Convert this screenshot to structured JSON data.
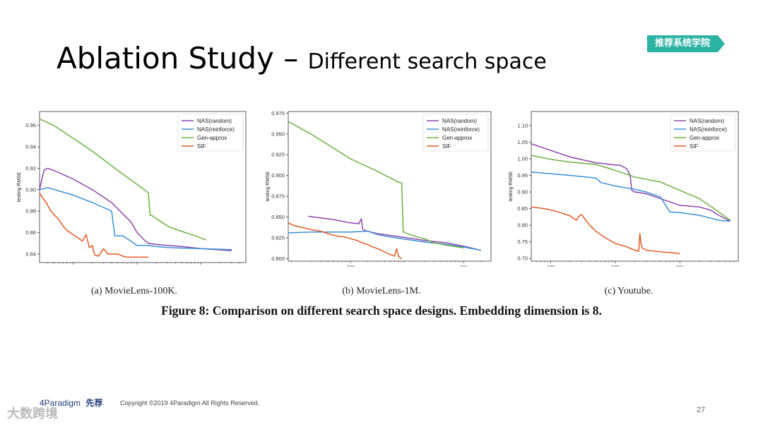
{
  "title": {
    "main": "Ablation Study – ",
    "sub": "Different search space"
  },
  "badge": {
    "label": "推荐系统学院",
    "color": "#2bb3a3"
  },
  "chart_data": [
    {
      "type": "line",
      "caption": "(a)  MovieLens-100K.",
      "xlabel": "clock time (sec)",
      "ylabel": "testing RMSE",
      "xscale": "log",
      "xlim": [
        3,
        5000
      ],
      "ylim": [
        0.832,
        0.973
      ],
      "xticks": [
        {
          "v": 10,
          "label": "10¹"
        },
        {
          "v": 100,
          "label": "10²"
        },
        {
          "v": 1000,
          "label": "10³"
        }
      ],
      "yticks": [
        0.84,
        0.86,
        0.88,
        0.9,
        0.92,
        0.94,
        0.96
      ],
      "ytick_labels": [
        "0.84",
        "0.86",
        "0.88",
        "0.90",
        "0.92",
        "0.94",
        "0.96"
      ],
      "legend": [
        "NAS(random)",
        "NAS(reinforce)",
        "Gen-approx",
        "SIF"
      ],
      "series": [
        {
          "name": "NAS(random)",
          "color": "#8e44ad",
          "x": [
            3,
            3.5,
            4,
            5,
            10,
            20,
            40,
            80,
            100,
            130,
            150,
            200,
            300,
            500,
            1000,
            3000
          ],
          "y": [
            0.9,
            0.918,
            0.92,
            0.918,
            0.91,
            0.9,
            0.888,
            0.87,
            0.86,
            0.853,
            0.85,
            0.849,
            0.848,
            0.847,
            0.845,
            0.843
          ]
        },
        {
          "name": "NAS(reinforce)",
          "color": "#3a8fd6",
          "x": [
            3,
            4,
            10,
            20,
            40,
            42,
            45,
            60,
            80,
            100,
            120,
            150,
            200,
            300,
            1000,
            3000
          ],
          "y": [
            0.9,
            0.902,
            0.895,
            0.888,
            0.88,
            0.87,
            0.857,
            0.857,
            0.852,
            0.848,
            0.848,
            0.848,
            0.847,
            0.846,
            0.845,
            0.844
          ]
        },
        {
          "name": "Gen-approx",
          "color": "#6ab040",
          "x": [
            3,
            5,
            10,
            20,
            50,
            100,
            150,
            160,
            170,
            200,
            300,
            500,
            800,
            1200
          ],
          "y": [
            0.966,
            0.96,
            0.948,
            0.936,
            0.918,
            0.905,
            0.897,
            0.876,
            0.876,
            0.873,
            0.866,
            0.861,
            0.857,
            0.853
          ]
        },
        {
          "name": "SIF",
          "color": "#e05a25",
          "x": [
            3,
            3.3,
            3.8,
            4.5,
            5,
            6,
            7,
            8,
            9,
            10,
            12,
            14,
            16,
            18,
            20,
            21,
            22,
            25,
            30,
            35,
            40,
            45,
            50,
            60,
            70,
            80,
            100,
            150
          ],
          "y": [
            0.897,
            0.893,
            0.888,
            0.88,
            0.877,
            0.872,
            0.866,
            0.862,
            0.86,
            0.858,
            0.855,
            0.852,
            0.858,
            0.846,
            0.848,
            0.842,
            0.839,
            0.838,
            0.845,
            0.84,
            0.84,
            0.84,
            0.84,
            0.838,
            0.837,
            0.837,
            0.837,
            0.837
          ]
        }
      ]
    },
    {
      "type": "line",
      "caption": "(b)  MovieLens-1M.",
      "xlabel": "clock time (sec)",
      "ylabel": "testing RMSE",
      "xscale": "log",
      "xlim": [
        8,
        30000
      ],
      "ylim": [
        0.797,
        0.977
      ],
      "xticks": [
        {
          "v": 100,
          "label": "10²"
        },
        {
          "v": 10000,
          "label": "10⁴"
        }
      ],
      "yticks": [
        0.8,
        0.825,
        0.85,
        0.875,
        0.9,
        0.925,
        0.95,
        0.975
      ],
      "ytick_labels": [
        "0.800",
        "0.825",
        "0.850",
        "0.875",
        "0.900",
        "0.925",
        "0.950",
        "0.975"
      ],
      "legend": [
        "NAS(random)",
        "NAS(reinforce)",
        "Gen-approx",
        "SIF"
      ],
      "series": [
        {
          "name": "NAS(random)",
          "color": "#8e44ad",
          "x": [
            18,
            50,
            100,
            140,
            155,
            165,
            200,
            300,
            500,
            1000,
            2000,
            5000,
            10000,
            20000
          ],
          "y": [
            0.851,
            0.847,
            0.843,
            0.842,
            0.848,
            0.835,
            0.833,
            0.83,
            0.828,
            0.825,
            0.822,
            0.819,
            0.815,
            0.81
          ]
        },
        {
          "name": "NAS(reinforce)",
          "color": "#3a8fd6",
          "x": [
            8,
            20,
            50,
            100,
            200,
            300,
            500,
            1000,
            2000,
            5000,
            10000,
            20000
          ],
          "y": [
            0.831,
            0.832,
            0.832,
            0.832,
            0.833,
            0.829,
            0.826,
            0.823,
            0.82,
            0.817,
            0.814,
            0.81
          ]
        },
        {
          "name": "Gen-approx",
          "color": "#6ab040",
          "x": [
            8,
            20,
            50,
            100,
            300,
            700,
            800,
            850,
            900,
            1000,
            1500,
            2000,
            3000,
            5000,
            10000
          ],
          "y": [
            0.965,
            0.95,
            0.933,
            0.92,
            0.905,
            0.892,
            0.891,
            0.832,
            0.832,
            0.83,
            0.826,
            0.824,
            0.819,
            0.816,
            0.813
          ]
        },
        {
          "name": "SIF",
          "color": "#e05a25",
          "x": [
            8,
            10,
            15,
            20,
            30,
            40,
            60,
            80,
            100,
            130,
            160,
            200,
            250,
            300,
            400,
            500,
            600,
            650,
            700,
            750,
            800
          ],
          "y": [
            0.843,
            0.84,
            0.837,
            0.835,
            0.833,
            0.83,
            0.827,
            0.826,
            0.824,
            0.822,
            0.819,
            0.817,
            0.814,
            0.812,
            0.808,
            0.805,
            0.803,
            0.812,
            0.803,
            0.801,
            0.8
          ]
        }
      ]
    },
    {
      "type": "line",
      "caption": "(c)  Youtube.",
      "xlabel": "clock time (sec)",
      "ylabel": "testing RMSE",
      "xscale": "log",
      "xlim": [
        50,
        80000
      ],
      "ylim": [
        0.692,
        1.142
      ],
      "xticks": [
        {
          "v": 100,
          "label": "10²"
        },
        {
          "v": 1000,
          "label": "10³"
        },
        {
          "v": 10000,
          "label": "10⁴"
        }
      ],
      "yticks": [
        0.7,
        0.75,
        0.8,
        0.85,
        0.9,
        0.95,
        1.0,
        1.05,
        1.1
      ],
      "ytick_labels": [
        "0.70",
        "0.75",
        "0.80",
        "0.85",
        "0.90",
        "0.95",
        "1.00",
        "1.05",
        "1.10"
      ],
      "legend": [
        "NAS(random)",
        "NAS(reinforce)",
        "Gen-approx",
        "SIF"
      ],
      "series": [
        {
          "name": "NAS(random)",
          "color": "#8e44ad",
          "x": [
            50,
            100,
            200,
            500,
            700,
            900,
            1200,
            1500,
            1700,
            1800,
            2000,
            3000,
            5000,
            7000,
            10000,
            20000,
            30000,
            40000,
            60000
          ],
          "y": [
            1.045,
            1.025,
            1.005,
            0.988,
            0.985,
            0.982,
            0.98,
            0.97,
            0.95,
            0.905,
            0.9,
            0.895,
            0.88,
            0.87,
            0.86,
            0.855,
            0.845,
            0.83,
            0.812
          ]
        },
        {
          "name": "NAS(reinforce)",
          "color": "#3a8fd6",
          "x": [
            50,
            100,
            200,
            500,
            600,
            700,
            1000,
            2000,
            3000,
            5000,
            6000,
            7000,
            10000,
            20000,
            40000,
            60000
          ],
          "y": [
            0.96,
            0.955,
            0.95,
            0.942,
            0.928,
            0.925,
            0.918,
            0.908,
            0.9,
            0.885,
            0.86,
            0.84,
            0.838,
            0.83,
            0.815,
            0.812
          ]
        },
        {
          "name": "Gen-approx",
          "color": "#6ab040",
          "x": [
            50,
            100,
            200,
            500,
            1000,
            2000,
            5000,
            10000,
            20000,
            40000,
            60000
          ],
          "y": [
            1.01,
            0.998,
            0.99,
            0.983,
            0.965,
            0.945,
            0.93,
            0.905,
            0.88,
            0.84,
            0.815
          ]
        },
        {
          "name": "SIF",
          "color": "#e05a25",
          "x": [
            50,
            80,
            120,
            200,
            250,
            270,
            300,
            350,
            400,
            500,
            700,
            1000,
            1500,
            2000,
            2300,
            2400,
            2500,
            2600,
            3000,
            5000,
            10000
          ],
          "y": [
            0.855,
            0.85,
            0.842,
            0.828,
            0.815,
            0.826,
            0.832,
            0.815,
            0.8,
            0.782,
            0.762,
            0.745,
            0.735,
            0.725,
            0.722,
            0.775,
            0.745,
            0.732,
            0.725,
            0.72,
            0.715
          ]
        }
      ]
    }
  ],
  "figure_caption": "Figure 8: Comparison on different search space designs. Embedding dimension is 8.",
  "footer": {
    "logo": "4Paradigm",
    "logo_cn": "先荐",
    "copyright": "Copyright ©2019 4Paradigm All Rights Reserved.",
    "page": "27",
    "watermark": "大数跨境"
  }
}
